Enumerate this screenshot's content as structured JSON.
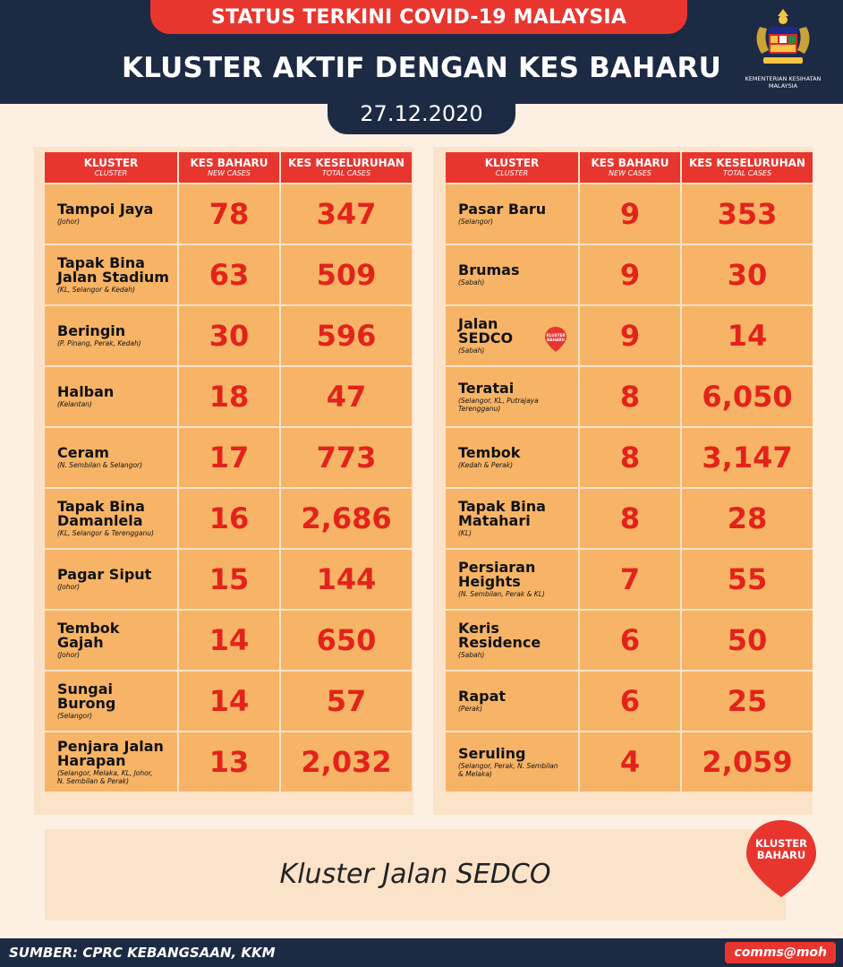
{
  "header": {
    "banner": "STATUS TERKINI COVID-19 MALAYSIA",
    "title": "KLUSTER AKTIF DENGAN KES BAHARU",
    "date": "27.12.2020",
    "logo_text": "KEMENTERIAN KESIHATAN\nMALAYSIA"
  },
  "columns": {
    "cluster": "KLUSTER",
    "cluster_sub": "CLUSTER",
    "new": "KES BAHARU",
    "new_sub": "NEW CASES",
    "total": "KES KESELURUHAN",
    "total_sub": "TOTAL CASES"
  },
  "left_rows": [
    {
      "name": "Tampoi Jaya",
      "state": "(Johor)",
      "new": "78",
      "total": "347"
    },
    {
      "name": "Tapak Bina\nJalan Stadium",
      "state": "(KL, Selangor & Kedah)",
      "new": "63",
      "total": "509"
    },
    {
      "name": "Beringin",
      "state": "(P. Pinang, Perak, Kedah)",
      "new": "30",
      "total": "596"
    },
    {
      "name": "Halban",
      "state": "(Kelantan)",
      "new": "18",
      "total": "47"
    },
    {
      "name": "Ceram",
      "state": "(N. Sembilan & Selangor)",
      "new": "17",
      "total": "773"
    },
    {
      "name": "Tapak Bina\nDamanlela",
      "state": "(KL, Selangor & Terengganu)",
      "new": "16",
      "total": "2,686"
    },
    {
      "name": "Pagar Siput",
      "state": "(Johor)",
      "new": "15",
      "total": "144"
    },
    {
      "name": "Tembok\nGajah",
      "state": "(Johor)",
      "new": "14",
      "total": "650"
    },
    {
      "name": "Sungai\nBurong",
      "state": "(Selangor)",
      "new": "14",
      "total": "57"
    },
    {
      "name": "Penjara Jalan\nHarapan",
      "state": "(Selangor, Melaka, KL, Johor,\nN. Sembilan & Perak)",
      "new": "13",
      "total": "2,032"
    }
  ],
  "right_rows": [
    {
      "name": "Pasar Baru",
      "state": "(Selangor)",
      "new": "9",
      "total": "353"
    },
    {
      "name": "Brumas",
      "state": "(Sabah)",
      "new": "9",
      "total": "30"
    },
    {
      "name": "Jalan\nSEDCO",
      "state": "(Sabah)",
      "new": "9",
      "total": "14"
    },
    {
      "name": "Teratai",
      "state": "(Selangor, KL, Putrajaya\nTerengganu)",
      "new": "8",
      "total": "6,050"
    },
    {
      "name": "Tembok",
      "state": "(Kedah & Perak)",
      "new": "8",
      "total": "3,147"
    },
    {
      "name": "Tapak Bina\nMatahari",
      "state": "(KL)",
      "new": "8",
      "total": "28"
    },
    {
      "name": "Persiaran\nHeights",
      "state": "(N. Sembilan, Perak & KL)",
      "new": "7",
      "total": "55"
    },
    {
      "name": "Keris\nResidence",
      "state": "(Sabah)",
      "new": "6",
      "total": "50"
    },
    {
      "name": "Rapat",
      "state": "(Perak)",
      "new": "6",
      "total": "25"
    },
    {
      "name": "Seruling",
      "state": "(Selangor, Perak, N. Sembilan\n& Melaka)",
      "new": "4",
      "total": "2,059"
    }
  ],
  "badge": {
    "mini_label": "KLUSTER\nBAHARU",
    "big_label": "KLUSTER\nBAHARU",
    "color": "#e8362f"
  },
  "note": "Kluster Jalan SEDCO",
  "footer": {
    "source": "SUMBER: CPRC KEBANGSAAN, KKM",
    "handle": "comms@moh"
  }
}
